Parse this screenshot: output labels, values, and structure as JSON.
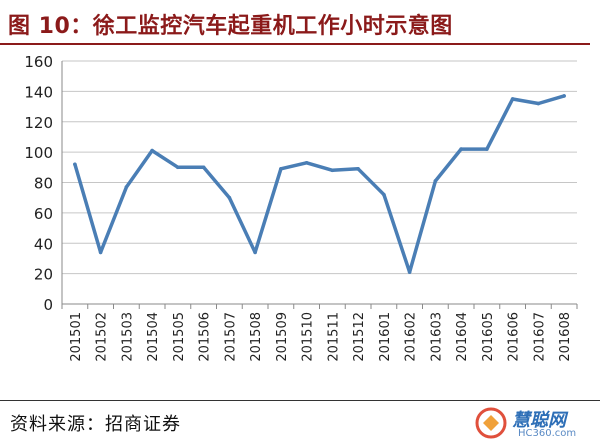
{
  "title": "图 10：徐工监控汽车起重机工作小时示意图",
  "source": "资料来源：招商证券",
  "watermark": {
    "main": "慧聪网",
    "sub": "HC360.com"
  },
  "colors": {
    "title": "#8b1a1a",
    "line": "#4a7eb5",
    "grid": "#c6c6c6"
  },
  "chart_data": {
    "type": "line",
    "title": "",
    "xlabel": "",
    "ylabel": "",
    "ylim": [
      0,
      160
    ],
    "yticks": [
      0,
      20,
      40,
      60,
      80,
      100,
      120,
      140,
      160
    ],
    "grid": true,
    "legend": "none",
    "categories": [
      "201501",
      "201502",
      "201503",
      "201504",
      "201505",
      "201506",
      "201507",
      "201508",
      "201509",
      "201510",
      "201511",
      "201512",
      "201601",
      "201602",
      "201603",
      "201604",
      "201605",
      "201606",
      "201607",
      "201608"
    ],
    "series": [
      {
        "values": [
          92,
          34,
          77,
          101,
          90,
          90,
          70,
          34,
          89,
          93,
          88,
          89,
          72,
          21,
          81,
          102,
          102,
          135,
          132,
          137
        ]
      }
    ]
  }
}
